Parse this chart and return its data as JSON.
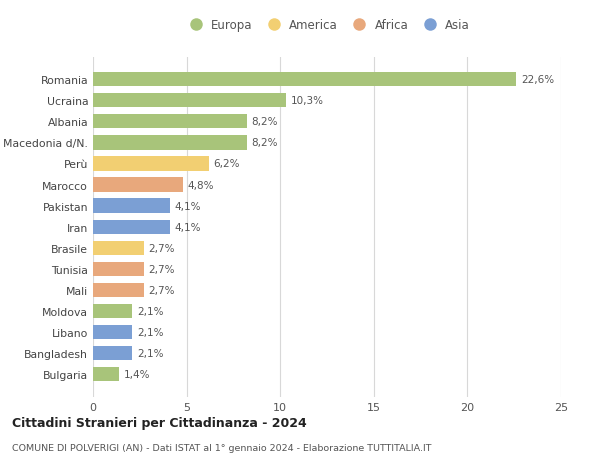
{
  "countries": [
    "Romania",
    "Ucraina",
    "Albania",
    "Macedonia d/N.",
    "Perù",
    "Marocco",
    "Pakistan",
    "Iran",
    "Brasile",
    "Tunisia",
    "Mali",
    "Moldova",
    "Libano",
    "Bangladesh",
    "Bulgaria"
  ],
  "values": [
    22.6,
    10.3,
    8.2,
    8.2,
    6.2,
    4.8,
    4.1,
    4.1,
    2.7,
    2.7,
    2.7,
    2.1,
    2.1,
    2.1,
    1.4
  ],
  "labels": [
    "22,6%",
    "10,3%",
    "8,2%",
    "8,2%",
    "6,2%",
    "4,8%",
    "4,1%",
    "4,1%",
    "2,7%",
    "2,7%",
    "2,7%",
    "2,1%",
    "2,1%",
    "2,1%",
    "1,4%"
  ],
  "continents": [
    "Europa",
    "Europa",
    "Europa",
    "Europa",
    "America",
    "Africa",
    "Asia",
    "Asia",
    "America",
    "Africa",
    "Africa",
    "Europa",
    "Asia",
    "Asia",
    "Europa"
  ],
  "continent_colors": {
    "Europa": "#a8c47a",
    "America": "#f2cf72",
    "Africa": "#e8a87c",
    "Asia": "#7b9fd4"
  },
  "legend_order": [
    "Europa",
    "America",
    "Africa",
    "Asia"
  ],
  "title": "Cittadini Stranieri per Cittadinanza - 2024",
  "subtitle": "COMUNE DI POLVERIGI (AN) - Dati ISTAT al 1° gennaio 2024 - Elaborazione TUTTITALIA.IT",
  "xlim": [
    0,
    25
  ],
  "xticks": [
    0,
    5,
    10,
    15,
    20,
    25
  ],
  "background_color": "#ffffff",
  "grid_color": "#d8d8d8",
  "bar_height": 0.68
}
